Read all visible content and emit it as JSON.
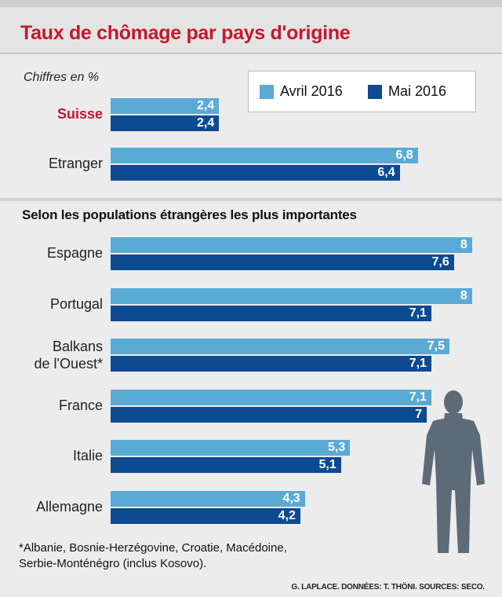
{
  "title": "Taux de chômage par pays d'origine",
  "subtitle": "Chiffres en %",
  "section_title": "Selon les populations étrangères les plus importantes",
  "footnote": "*Albanie, Bosnie-Herzégovine, Croatie, Macédoine,\nSerbie-Monténégro (inclus Kosovo).",
  "credit": "G. LAPLACE. DONNÉES: T. THÖNI. SOURCES: SECO.",
  "colors": {
    "accent": "#c5182c",
    "apr": "#5aaad6",
    "may": "#0c4a91"
  },
  "icons": {
    "figure": "person-silhouette-icon"
  },
  "chart_data": {
    "type": "bar",
    "orientation": "horizontal",
    "unit": "%",
    "legend_position": "top-right",
    "grid": false,
    "series": [
      {
        "name": "Avril 2016",
        "color": "#5aaad6"
      },
      {
        "name": "Mai 2016",
        "color": "#0c4a91"
      }
    ],
    "groups": [
      {
        "categories": [
          "Suisse",
          "Etranger"
        ],
        "values": [
          [
            "2,4",
            "2,4"
          ],
          [
            "6,8",
            "6,4"
          ]
        ]
      },
      {
        "categories": [
          "Espagne",
          "Portugal",
          "Balkans\nde l'Ouest*",
          "France",
          "Italie",
          "Allemagne"
        ],
        "values": [
          [
            "8",
            "7,6"
          ],
          [
            "8",
            "7,1"
          ],
          [
            "7,5",
            "7,1"
          ],
          [
            "7,1",
            "7"
          ],
          [
            "5,3",
            "5,1"
          ],
          [
            "4,3",
            "4,2"
          ]
        ]
      }
    ]
  }
}
